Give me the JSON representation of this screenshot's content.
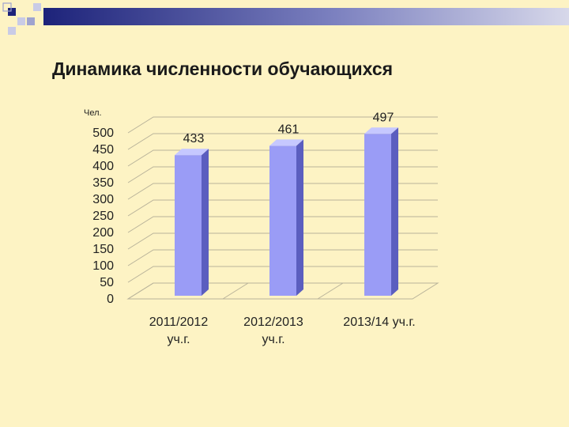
{
  "slide": {
    "title": "Динамика численности обучающихся"
  },
  "colors": {
    "background": "#fdf3c4",
    "bar_front": "#9a9cf6",
    "bar_side": "#5b5ebf",
    "bar_top": "#c6c8ff",
    "header_dark": "#1d237a",
    "header_light": "#c9cbe6"
  },
  "chart_data": {
    "type": "bar",
    "style": "3d-column",
    "title": "",
    "ylabel": "Чел.",
    "xlabel": "",
    "categories": [
      [
        "2011/2012",
        "уч.г."
      ],
      [
        "2012/2013",
        "уч.г."
      ],
      [
        "2013/14 уч.г."
      ]
    ],
    "values": [
      433,
      461,
      497
    ],
    "data_labels": [
      "433",
      "461",
      "497"
    ],
    "ylim": [
      0,
      500
    ],
    "yticks": [
      0,
      50,
      100,
      150,
      200,
      250,
      300,
      350,
      400,
      450,
      500
    ],
    "grid": true,
    "legend": "none"
  }
}
